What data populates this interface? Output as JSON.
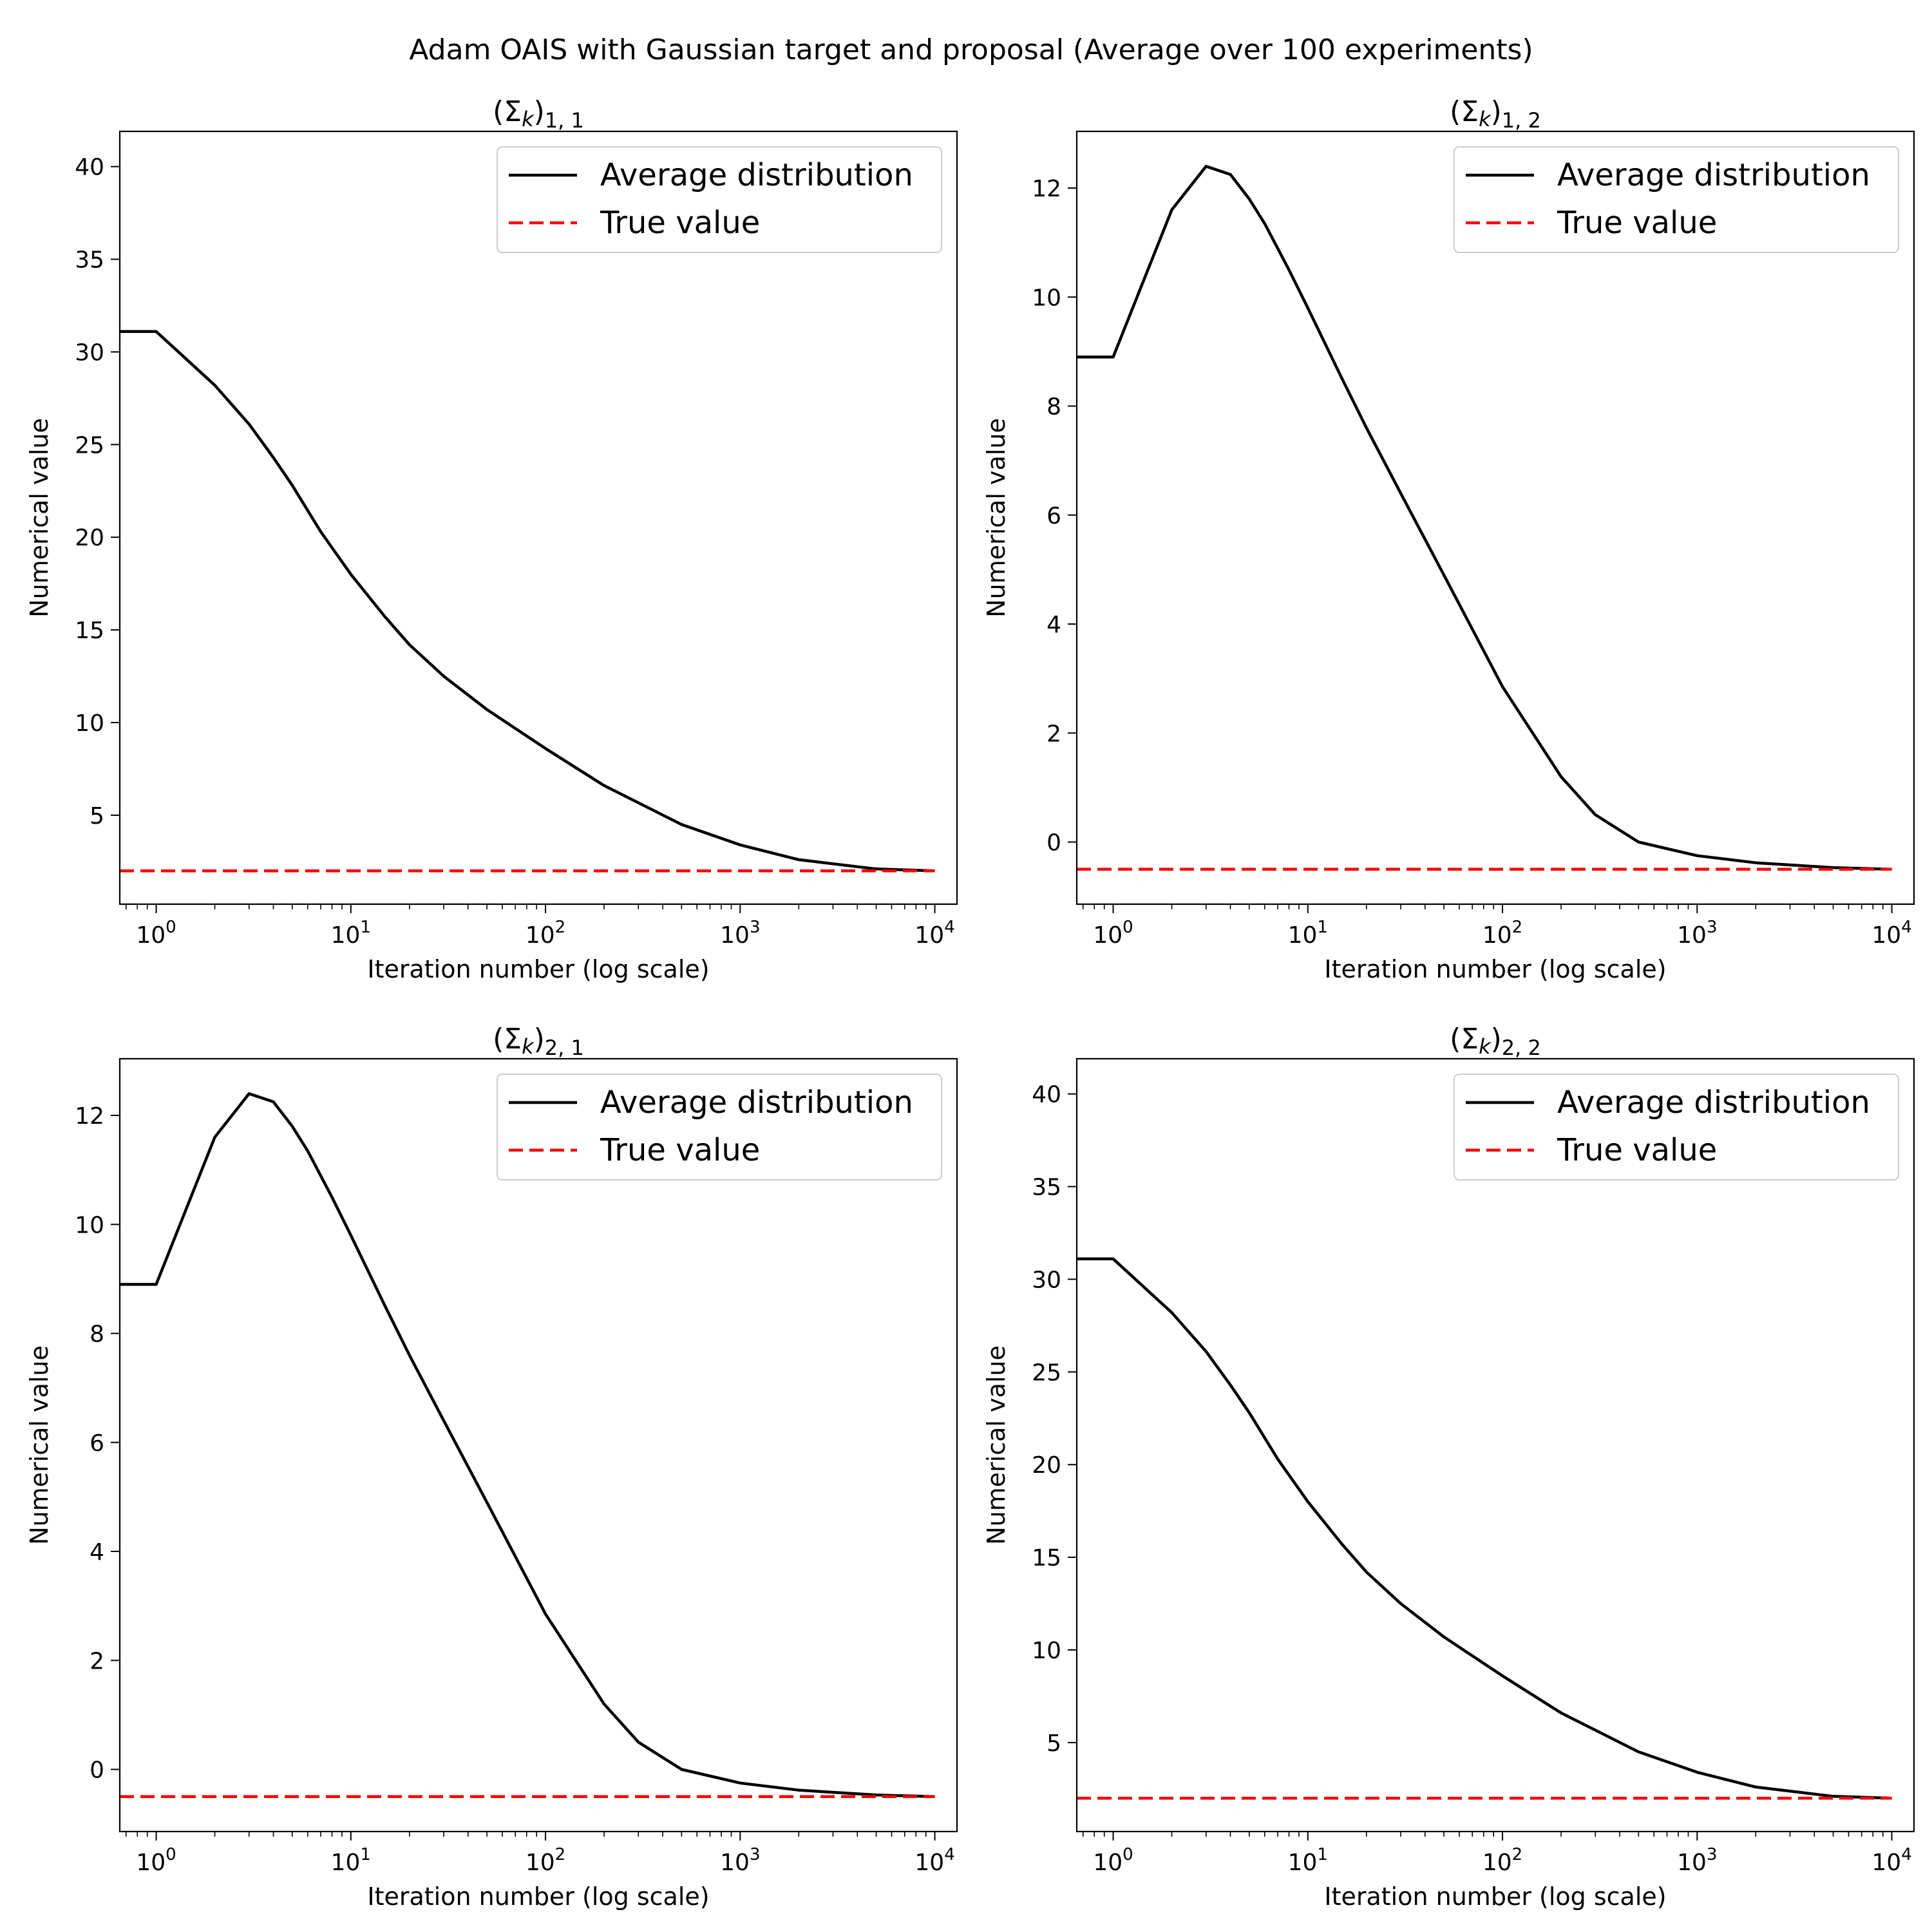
{
  "figure": {
    "suptitle": "Adam OAIS with Gaussian target and proposal (Average over 100 experiments)"
  },
  "chart_data": [
    {
      "type": "line",
      "title": "(Σk)1,1",
      "title_parts": {
        "base": "(Σ",
        "italic": "k",
        "close": ")",
        "sub": "1, 1"
      },
      "xlabel": "Iteration number (log scale)",
      "ylabel": "Numerical value",
      "xscale": "log",
      "xlim": [
        0.65,
        13000
      ],
      "ylim": [
        0.2,
        41.9
      ],
      "xticks": [
        1,
        10,
        100,
        1000,
        10000
      ],
      "xtick_labels": [
        {
          "base": "10",
          "exp": "0"
        },
        {
          "base": "10",
          "exp": "1"
        },
        {
          "base": "10",
          "exp": "2"
        },
        {
          "base": "10",
          "exp": "3"
        },
        {
          "base": "10",
          "exp": "4"
        }
      ],
      "yticks": [
        5,
        10,
        15,
        20,
        25,
        30,
        35,
        40
      ],
      "ytick_labels": [
        "5",
        "10",
        "15",
        "20",
        "25",
        "30",
        "35",
        "40"
      ],
      "legend_position": "top-right",
      "grid": false,
      "series": [
        {
          "name": "Average distribution",
          "color": "#000000",
          "style": "solid",
          "x": [
            0.65,
            1,
            2,
            3,
            4,
            5,
            7,
            10,
            15,
            20,
            30,
            50,
            100,
            200,
            500,
            1000,
            2000,
            5000,
            10000
          ],
          "y": [
            31.1,
            31.1,
            28.2,
            26.1,
            24.3,
            22.8,
            20.3,
            18.0,
            15.7,
            14.2,
            12.5,
            10.7,
            8.6,
            6.6,
            4.5,
            3.4,
            2.6,
            2.1,
            2.0
          ]
        },
        {
          "name": "True value",
          "color": "#ff0000",
          "style": "dashed",
          "x": [
            0.65,
            10000
          ],
          "y": [
            2.0,
            2.0
          ]
        }
      ]
    },
    {
      "type": "line",
      "title": "(Σk)1,2",
      "title_parts": {
        "base": "(Σ",
        "italic": "k",
        "close": ")",
        "sub": "1, 2"
      },
      "xlabel": "Iteration number (log scale)",
      "ylabel": "Numerical value",
      "xscale": "log",
      "xlim": [
        0.65,
        13000
      ],
      "ylim": [
        -1.14,
        13.04
      ],
      "xticks": [
        1,
        10,
        100,
        1000,
        10000
      ],
      "xtick_labels": [
        {
          "base": "10",
          "exp": "0"
        },
        {
          "base": "10",
          "exp": "1"
        },
        {
          "base": "10",
          "exp": "2"
        },
        {
          "base": "10",
          "exp": "3"
        },
        {
          "base": "10",
          "exp": "4"
        }
      ],
      "yticks": [
        0,
        2,
        4,
        6,
        8,
        10,
        12
      ],
      "ytick_labels": [
        "0",
        "2",
        "4",
        "6",
        "8",
        "10",
        "12"
      ],
      "legend_position": "top-right",
      "grid": false,
      "series": [
        {
          "name": "Average distribution",
          "color": "#000000",
          "style": "solid",
          "x": [
            0.65,
            1,
            2,
            3,
            4,
            5,
            6,
            8,
            10,
            15,
            20,
            30,
            50,
            100,
            200,
            300,
            500,
            1000,
            2000,
            5000,
            10000
          ],
          "y": [
            8.9,
            8.9,
            11.6,
            12.4,
            12.25,
            11.8,
            11.35,
            10.5,
            9.8,
            8.5,
            7.6,
            6.4,
            4.9,
            2.85,
            1.2,
            0.5,
            0.0,
            -0.25,
            -0.38,
            -0.47,
            -0.5
          ]
        },
        {
          "name": "True value",
          "color": "#ff0000",
          "style": "dashed",
          "x": [
            0.65,
            10000
          ],
          "y": [
            -0.5,
            -0.5
          ]
        }
      ]
    },
    {
      "type": "line",
      "title": "(Σk)2,1",
      "title_parts": {
        "base": "(Σ",
        "italic": "k",
        "close": ")",
        "sub": "2, 1"
      },
      "xlabel": "Iteration number (log scale)",
      "ylabel": "Numerical value",
      "xscale": "log",
      "xlim": [
        0.65,
        13000
      ],
      "ylim": [
        -1.14,
        13.04
      ],
      "xticks": [
        1,
        10,
        100,
        1000,
        10000
      ],
      "xtick_labels": [
        {
          "base": "10",
          "exp": "0"
        },
        {
          "base": "10",
          "exp": "1"
        },
        {
          "base": "10",
          "exp": "2"
        },
        {
          "base": "10",
          "exp": "3"
        },
        {
          "base": "10",
          "exp": "4"
        }
      ],
      "yticks": [
        0,
        2,
        4,
        6,
        8,
        10,
        12
      ],
      "ytick_labels": [
        "0",
        "2",
        "4",
        "6",
        "8",
        "10",
        "12"
      ],
      "legend_position": "top-right",
      "grid": false,
      "series": [
        {
          "name": "Average distribution",
          "color": "#000000",
          "style": "solid",
          "x": [
            0.65,
            1,
            2,
            3,
            4,
            5,
            6,
            8,
            10,
            15,
            20,
            30,
            50,
            100,
            200,
            300,
            500,
            1000,
            2000,
            5000,
            10000
          ],
          "y": [
            8.9,
            8.9,
            11.6,
            12.4,
            12.25,
            11.8,
            11.35,
            10.5,
            9.8,
            8.5,
            7.6,
            6.4,
            4.9,
            2.85,
            1.2,
            0.5,
            0.0,
            -0.25,
            -0.38,
            -0.47,
            -0.5
          ]
        },
        {
          "name": "True value",
          "color": "#ff0000",
          "style": "dashed",
          "x": [
            0.65,
            10000
          ],
          "y": [
            -0.5,
            -0.5
          ]
        }
      ]
    },
    {
      "type": "line",
      "title": "(Σk)2,2",
      "title_parts": {
        "base": "(Σ",
        "italic": "k",
        "close": ")",
        "sub": "2, 2"
      },
      "xlabel": "Iteration number (log scale)",
      "ylabel": "Numerical value",
      "xscale": "log",
      "xlim": [
        0.65,
        13000
      ],
      "ylim": [
        0.2,
        41.9
      ],
      "xticks": [
        1,
        10,
        100,
        1000,
        10000
      ],
      "xtick_labels": [
        {
          "base": "10",
          "exp": "0"
        },
        {
          "base": "10",
          "exp": "1"
        },
        {
          "base": "10",
          "exp": "2"
        },
        {
          "base": "10",
          "exp": "3"
        },
        {
          "base": "10",
          "exp": "4"
        }
      ],
      "yticks": [
        5,
        10,
        15,
        20,
        25,
        30,
        35,
        40
      ],
      "ytick_labels": [
        "5",
        "10",
        "15",
        "20",
        "25",
        "30",
        "35",
        "40"
      ],
      "legend_position": "top-right",
      "grid": false,
      "series": [
        {
          "name": "Average distribution",
          "color": "#000000",
          "style": "solid",
          "x": [
            0.65,
            1,
            2,
            3,
            4,
            5,
            7,
            10,
            15,
            20,
            30,
            50,
            100,
            200,
            500,
            1000,
            2000,
            5000,
            10000
          ],
          "y": [
            31.1,
            31.1,
            28.2,
            26.1,
            24.3,
            22.8,
            20.3,
            18.0,
            15.7,
            14.2,
            12.5,
            10.7,
            8.6,
            6.6,
            4.5,
            3.4,
            2.6,
            2.1,
            2.0
          ]
        },
        {
          "name": "True value",
          "color": "#ff0000",
          "style": "dashed",
          "x": [
            0.65,
            10000
          ],
          "y": [
            2.0,
            2.0
          ]
        }
      ]
    }
  ]
}
